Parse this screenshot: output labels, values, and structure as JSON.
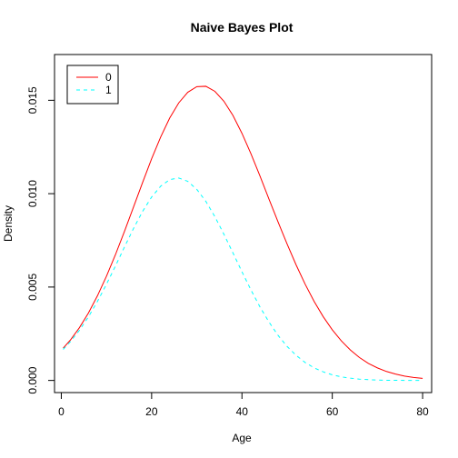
{
  "chart_data": {
    "type": "line",
    "title": "Naive Bayes Plot",
    "xlabel": "Age",
    "ylabel": "Density",
    "xlim": [
      -1.5,
      82
    ],
    "ylim": [
      -0.00065,
      0.01745
    ],
    "x_ticks": [
      0,
      20,
      40,
      60,
      80
    ],
    "y_ticks": [
      0.0,
      0.005,
      0.01,
      0.015
    ],
    "y_tick_labels": [
      "0.000",
      "0.005",
      "0.010",
      "0.015"
    ],
    "legend": {
      "position": "top-left",
      "entries": [
        {
          "label": "0",
          "color": "#ff0000",
          "dash": "solid"
        },
        {
          "label": "1",
          "color": "#00ffff",
          "dash": "dashed"
        }
      ]
    },
    "series": [
      {
        "legend_label": "0",
        "color": "#ff0000",
        "dash": "solid",
        "x": [
          0.42,
          2,
          4,
          6,
          8,
          10,
          12,
          14,
          16,
          18,
          20,
          22,
          24,
          26,
          28,
          30,
          32,
          34,
          36,
          38,
          40,
          42,
          44,
          46,
          48,
          50,
          52,
          54,
          56,
          58,
          60,
          62,
          64,
          66,
          68,
          70,
          72,
          74,
          76,
          78,
          80
        ],
        "y": [
          0.00173,
          0.00216,
          0.00282,
          0.00361,
          0.00453,
          0.00558,
          0.00674,
          0.00799,
          0.00929,
          0.0106,
          0.01187,
          0.01303,
          0.01405,
          0.01486,
          0.01543,
          0.01573,
          0.01575,
          0.01548,
          0.01495,
          0.01419,
          0.01323,
          0.01213,
          0.01094,
          0.0097,
          0.00848,
          0.0073,
          0.00618,
          0.00515,
          0.00422,
          0.00341,
          0.00271,
          0.00212,
          0.00163,
          0.00123,
          0.00091,
          0.00067,
          0.00048,
          0.00034,
          0.00023,
          0.00016,
          0.00011
        ]
      },
      {
        "legend_label": "1",
        "color": "#00ffff",
        "dash": "dashed",
        "x": [
          0.42,
          2,
          4,
          6,
          8,
          10,
          12,
          14,
          16,
          18,
          20,
          22,
          24,
          26,
          28,
          30,
          32,
          34,
          36,
          38,
          40,
          42,
          44,
          46,
          48,
          50,
          52,
          54,
          56,
          58,
          60,
          62,
          64,
          66,
          68,
          70,
          72,
          74,
          76,
          78,
          80
        ],
        "y": [
          0.00166,
          0.00207,
          0.00268,
          0.0034,
          0.00423,
          0.00515,
          0.00613,
          0.00715,
          0.00814,
          0.00905,
          0.00982,
          0.0104,
          0.01075,
          0.01084,
          0.01066,
          0.01023,
          0.00959,
          0.00877,
          0.00783,
          0.00683,
          0.00582,
          0.00484,
          0.00393,
          0.00312,
          0.00241,
          0.00182,
          0.00134,
          0.00096,
          0.00067,
          0.00046,
          0.0003,
          0.00019,
          0.00012,
          7e-05,
          4e-05,
          2e-05,
          1e-05,
          1e-05,
          0.0,
          0.0,
          0.0
        ]
      }
    ],
    "grid": false
  }
}
